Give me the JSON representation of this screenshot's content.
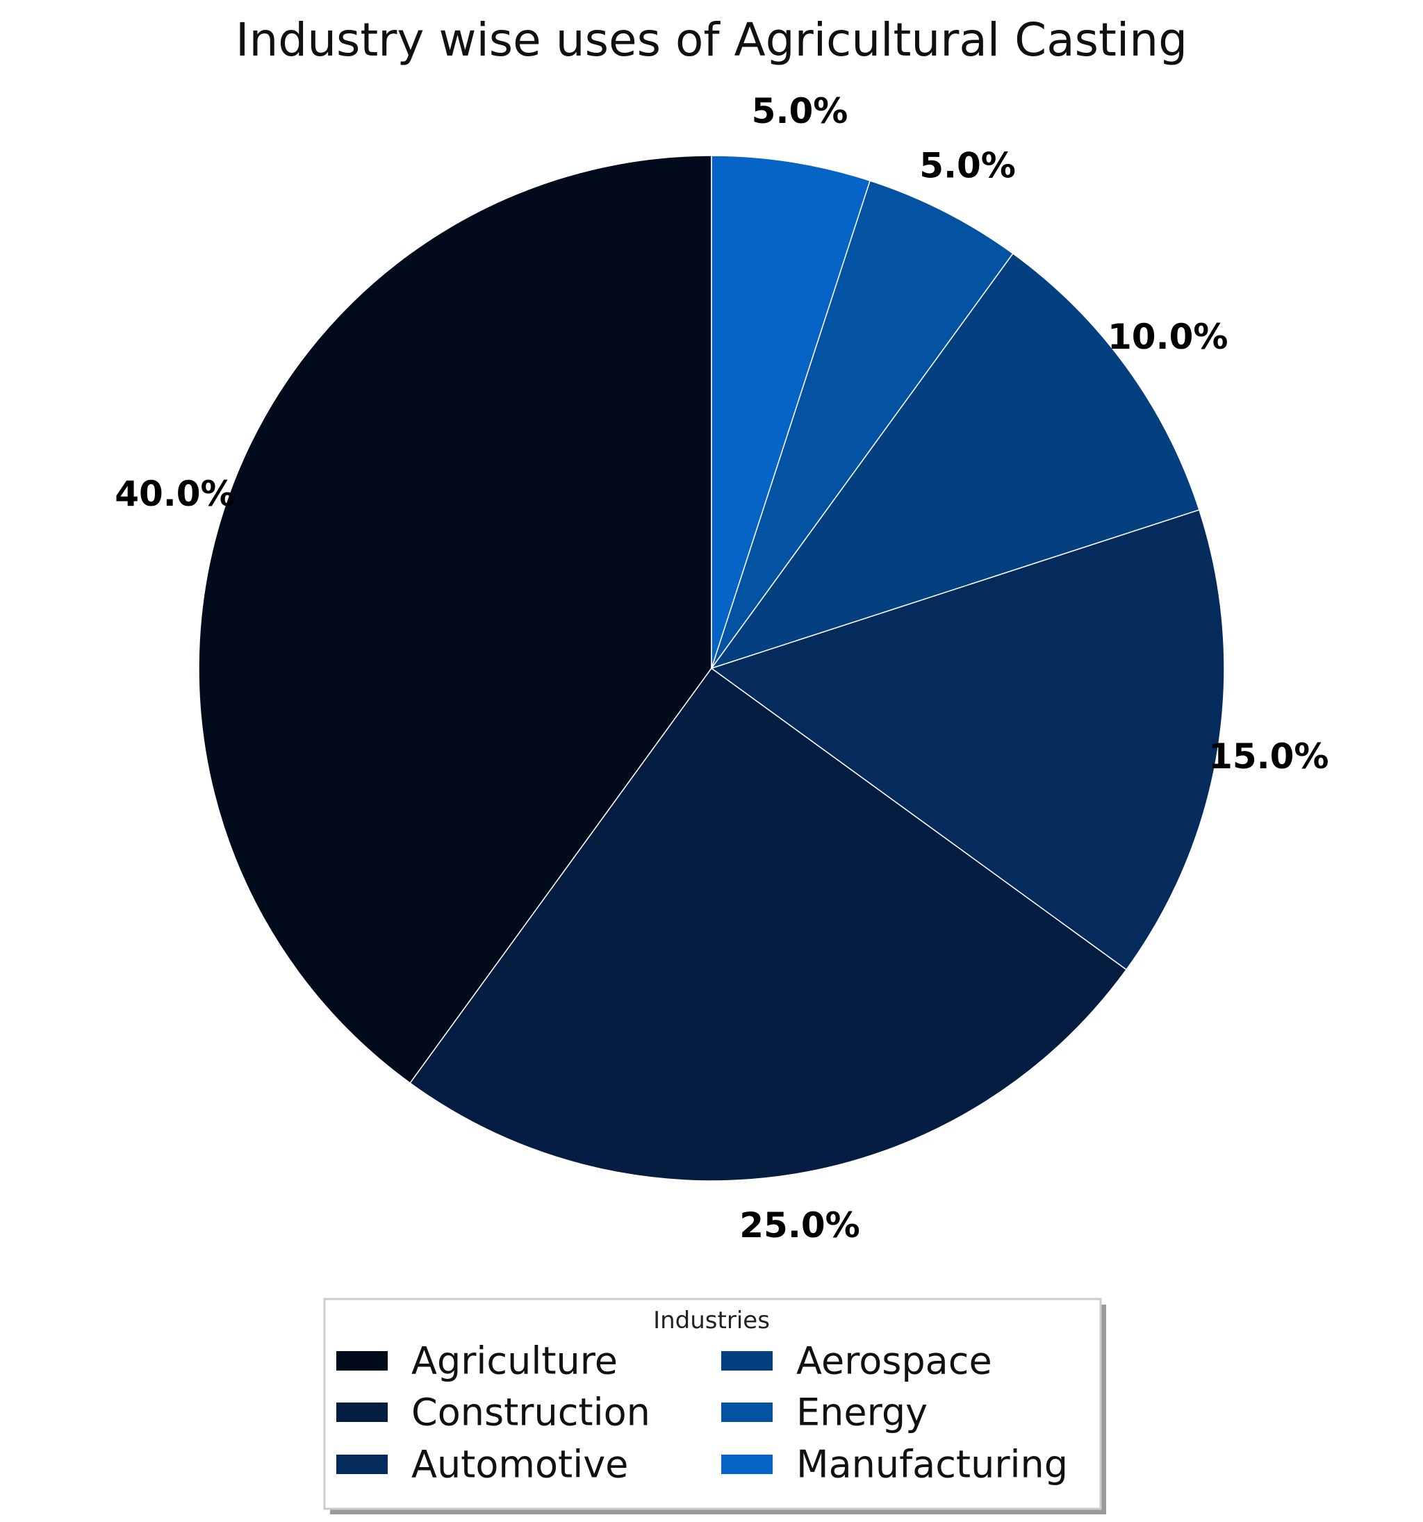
{
  "chart_data": {
    "type": "pie",
    "title": "Industry wise uses of Agricultural Casting",
    "legend_title": "Industries",
    "legend_position": "bottom-center",
    "start_angle_deg": 90,
    "direction": "counterclockwise",
    "categories": [
      "Agriculture",
      "Construction",
      "Automotive",
      "Aerospace",
      "Energy",
      "Manufacturing"
    ],
    "values": [
      40,
      25,
      15,
      10,
      5,
      5
    ],
    "labels": [
      "40.0%",
      "25.0%",
      "15.0%",
      "10.0%",
      "5.0%",
      "5.0%"
    ],
    "colors": [
      "#020b1b",
      "#041d40",
      "#042b5c",
      "#043f7f",
      "#0453a3",
      "#0664c6"
    ],
    "edge_color": "#ffffff"
  }
}
